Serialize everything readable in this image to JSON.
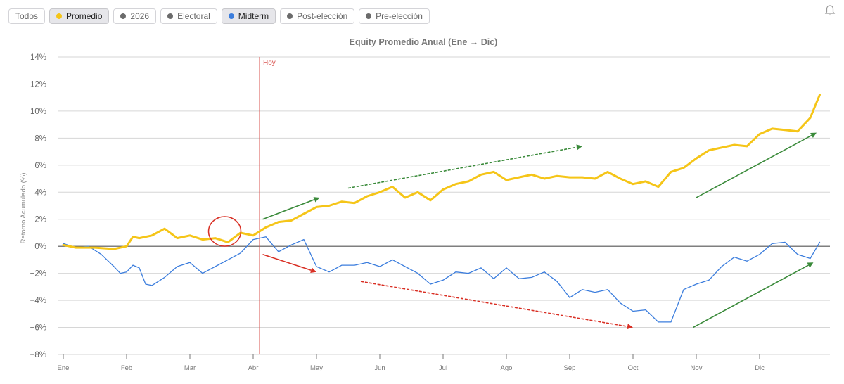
{
  "filters": [
    {
      "label": "Todos",
      "dot": null,
      "active": false
    },
    {
      "label": "Promedio",
      "dot": "#f5c518",
      "active": true
    },
    {
      "label": "2026",
      "dot": "#6b6b6b",
      "active": false
    },
    {
      "label": "Electoral",
      "dot": "#6b6b6b",
      "active": false
    },
    {
      "label": "Midterm",
      "dot": "#3b7ddd",
      "active": true
    },
    {
      "label": "Post-elección",
      "dot": "#6b6b6b",
      "active": false
    },
    {
      "label": "Pre-elección",
      "dot": "#6b6b6b",
      "active": false
    }
  ],
  "icons": {
    "notifications": "bell-icon"
  },
  "chart_data": {
    "type": "line",
    "title": "Equity Promedio Anual (Ene → Dic)",
    "ylabel": "Retorno Acumulado (%)",
    "xlabel": "",
    "ylim": [
      -8,
      14
    ],
    "yticks": [
      -8,
      -6,
      -4,
      -2,
      0,
      2,
      4,
      6,
      8,
      10,
      12,
      14
    ],
    "ytick_labels": [
      "−8%",
      "−6%",
      "−4%",
      "−2%",
      "0%",
      "2%",
      "4%",
      "6%",
      "8%",
      "10%",
      "12%",
      "14%"
    ],
    "xlim": [
      0,
      12
    ],
    "months": [
      "Ene",
      "Feb",
      "Mar",
      "Abr",
      "May",
      "Jun",
      "Jul",
      "Ago",
      "Sep",
      "Oct",
      "Nov",
      "Dic"
    ],
    "today_line": {
      "x": 3.1,
      "label": "Hoy",
      "color": "#d9534f"
    },
    "grid": true,
    "series": [
      {
        "name": "Promedio",
        "color": "#f5c518",
        "width": 3,
        "x": [
          0,
          0.2,
          0.5,
          0.8,
          1.0,
          1.1,
          1.2,
          1.4,
          1.6,
          1.8,
          2.0,
          2.2,
          2.4,
          2.6,
          2.8,
          3.0,
          3.2,
          3.4,
          3.6,
          3.8,
          4.0,
          4.2,
          4.4,
          4.6,
          4.8,
          5.0,
          5.2,
          5.4,
          5.6,
          5.8,
          6.0,
          6.2,
          6.4,
          6.6,
          6.8,
          7.0,
          7.2,
          7.4,
          7.6,
          7.8,
          8.0,
          8.2,
          8.4,
          8.6,
          8.8,
          9.0,
          9.2,
          9.4,
          9.6,
          9.8,
          10.0,
          10.2,
          10.4,
          10.6,
          10.8,
          11.0,
          11.2,
          11.4,
          11.6,
          11.8,
          11.95
        ],
        "y": [
          0.1,
          -0.1,
          -0.1,
          -0.2,
          0.0,
          0.7,
          0.6,
          0.8,
          1.3,
          0.6,
          0.8,
          0.5,
          0.6,
          0.3,
          1.0,
          0.8,
          1.4,
          1.8,
          1.9,
          2.4,
          2.9,
          3.0,
          3.3,
          3.2,
          3.7,
          4.0,
          4.4,
          3.6,
          4.0,
          3.4,
          4.2,
          4.6,
          4.8,
          5.3,
          5.5,
          4.9,
          5.1,
          5.3,
          5.0,
          5.2,
          5.1,
          5.1,
          5.0,
          5.5,
          5.0,
          4.6,
          4.8,
          4.4,
          5.5,
          5.8,
          6.5,
          7.1,
          7.3,
          7.5,
          7.4,
          8.3,
          8.7,
          8.6,
          8.5,
          9.5,
          11.2
        ]
      },
      {
        "name": "Midterm",
        "color": "#3b7ddd",
        "width": 1.3,
        "x": [
          0,
          0.2,
          0.4,
          0.6,
          0.8,
          0.9,
          1.0,
          1.1,
          1.2,
          1.3,
          1.4,
          1.6,
          1.8,
          2.0,
          2.2,
          2.4,
          2.6,
          2.8,
          3.0,
          3.2,
          3.4,
          3.6,
          3.8,
          4.0,
          4.2,
          4.4,
          4.6,
          4.8,
          5.0,
          5.2,
          5.4,
          5.6,
          5.8,
          6.0,
          6.2,
          6.4,
          6.6,
          6.8,
          7.0,
          7.2,
          7.4,
          7.6,
          7.8,
          8.0,
          8.2,
          8.4,
          8.6,
          8.8,
          9.0,
          9.2,
          9.4,
          9.6,
          9.8,
          10.0,
          10.2,
          10.4,
          10.6,
          10.8,
          11.0,
          11.2,
          11.4,
          11.6,
          11.8,
          11.95
        ],
        "y": [
          0.2,
          -0.1,
          0.0,
          -0.6,
          -1.5,
          -2.0,
          -1.9,
          -1.4,
          -1.6,
          -2.8,
          -2.9,
          -2.3,
          -1.5,
          -1.2,
          -2.0,
          -1.5,
          -1.0,
          -0.5,
          0.5,
          0.7,
          -0.4,
          0.1,
          0.5,
          -1.5,
          -1.9,
          -1.4,
          -1.4,
          -1.2,
          -1.5,
          -1.0,
          -1.5,
          -2.0,
          -2.8,
          -2.5,
          -1.9,
          -2.0,
          -1.6,
          -2.4,
          -1.6,
          -2.4,
          -2.3,
          -1.9,
          -2.6,
          -3.8,
          -3.2,
          -3.4,
          -3.2,
          -4.2,
          -4.8,
          -4.7,
          -5.6,
          -5.6,
          -3.2,
          -2.8,
          -2.5,
          -1.5,
          -0.8,
          -1.1,
          -0.6,
          0.2,
          0.3,
          -0.6,
          -0.9,
          0.3
        ]
      }
    ],
    "annotations": {
      "circle": {
        "x": 2.55,
        "y": 1.1,
        "color": "#d93025"
      },
      "arrows": [
        {
          "from": [
            3.15,
            2.0
          ],
          "to": [
            4.05,
            3.6
          ],
          "color": "#3a8a3a",
          "dashed": false
        },
        {
          "from": [
            4.5,
            4.3
          ],
          "to": [
            8.2,
            7.4
          ],
          "color": "#3a8a3a",
          "dashed": true
        },
        {
          "from": [
            10.0,
            3.6
          ],
          "to": [
            11.9,
            8.4
          ],
          "color": "#3a8a3a",
          "dashed": false
        },
        {
          "from": [
            3.15,
            -0.6
          ],
          "to": [
            4.0,
            -1.9
          ],
          "color": "#d93025",
          "dashed": false
        },
        {
          "from": [
            4.7,
            -2.6
          ],
          "to": [
            9.0,
            -6.0
          ],
          "color": "#d93025",
          "dashed": true
        },
        {
          "from": [
            9.95,
            -6.0
          ],
          "to": [
            11.85,
            -1.2
          ],
          "color": "#3a8a3a",
          "dashed": false
        }
      ]
    }
  }
}
